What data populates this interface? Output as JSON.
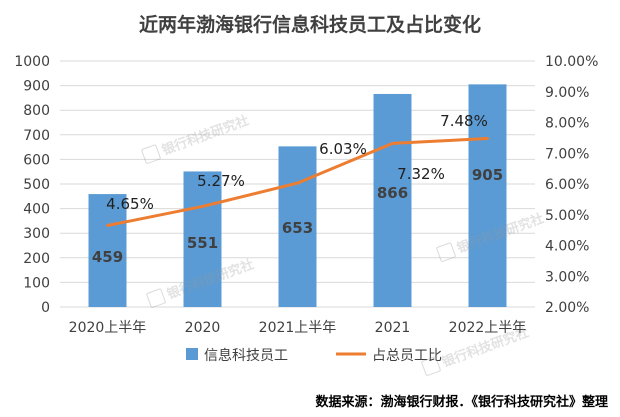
{
  "chart_data": {
    "type": "bar",
    "title": "近两年渤海银行信息科技员工及占比变化",
    "categories": [
      "2020上半年",
      "2020",
      "2021上半年",
      "2021",
      "2022上半年"
    ],
    "series": [
      {
        "name": "信息科技员工",
        "type": "bar",
        "axis": "left",
        "values": [
          459,
          551,
          653,
          866,
          905
        ],
        "labels": [
          "459",
          "551",
          "653",
          "866",
          "905"
        ]
      },
      {
        "name": "占总员工比",
        "type": "line",
        "axis": "right",
        "values": [
          4.65,
          5.27,
          6.03,
          7.32,
          7.48
        ],
        "labels": [
          "4.65%",
          "5.27%",
          "6.03%",
          "7.32%",
          "7.48%"
        ]
      }
    ],
    "y_left": {
      "min": 0,
      "max": 1000,
      "step": 100,
      "ticks": [
        "0",
        "100",
        "200",
        "300",
        "400",
        "500",
        "600",
        "700",
        "800",
        "900",
        "1000"
      ]
    },
    "y_right": {
      "min": 2,
      "max": 10,
      "step": 1,
      "ticks": [
        "2.00%",
        "3.00%",
        "4.00%",
        "5.00%",
        "6.00%",
        "7.00%",
        "8.00%",
        "9.00%",
        "10.00%"
      ]
    },
    "legend_position": "bottom",
    "grid": true,
    "colors": {
      "bar": "#5b9bd5",
      "line": "#ed7d31",
      "grid": "#d9d9d9",
      "text": "#404040"
    }
  },
  "source_note": "数据来源：渤海银行财报．《银行科技研究社》整理",
  "watermark": "银行科技研究社"
}
